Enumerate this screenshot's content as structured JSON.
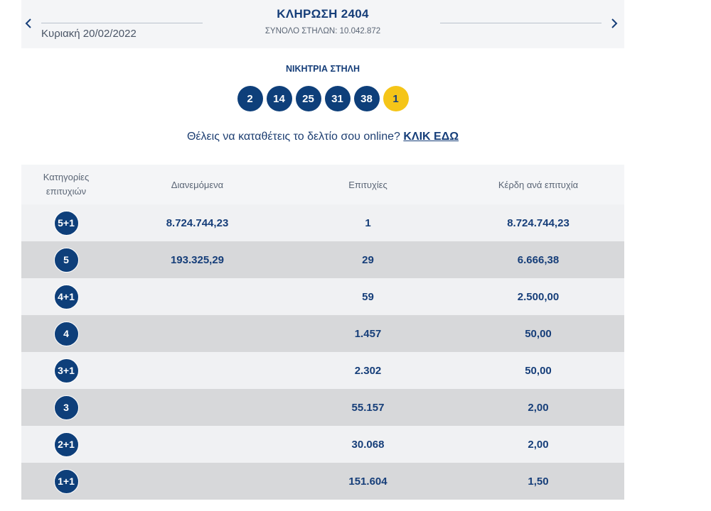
{
  "draw": {
    "title": "ΚΛΗΡΩΣΗ 2404",
    "date": "Κυριακή 20/02/2022",
    "total_columns": "ΣΥΝΟΛΟ ΣΤΗΛΩΝ: 10.042.872",
    "prev_icon": "chevron-left-icon",
    "next_icon": "chevron-right-icon"
  },
  "winning": {
    "label": "ΝΙΚΗΤΡΙΑ ΣΤΗΛΗ",
    "numbers": [
      "2",
      "14",
      "25",
      "31",
      "38"
    ],
    "bonus": "1"
  },
  "cta": {
    "text": "Θέλεις να καταθέτεις το δελτίο σου online? ",
    "link": "ΚΛΙΚ ΕΔΩ"
  },
  "table": {
    "headers": {
      "category_line1": "Κατηγορίες",
      "category_line2": "επιτυχιών",
      "distributed": "Διανεμόμενα",
      "winners": "Επιτυχίες",
      "prize": "Κέρδη ανά επιτυχία"
    },
    "rows": [
      {
        "category": "5+1",
        "distributed": "8.724.744,23",
        "winners": "1",
        "prize": "8.724.744,23"
      },
      {
        "category": "5",
        "distributed": "193.325,29",
        "winners": "29",
        "prize": "6.666,38"
      },
      {
        "category": "4+1",
        "distributed": "",
        "winners": "59",
        "prize": "2.500,00"
      },
      {
        "category": "4",
        "distributed": "",
        "winners": "1.457",
        "prize": "50,00"
      },
      {
        "category": "3+1",
        "distributed": "",
        "winners": "2.302",
        "prize": "50,00"
      },
      {
        "category": "3",
        "distributed": "",
        "winners": "55.157",
        "prize": "2,00"
      },
      {
        "category": "2+1",
        "distributed": "",
        "winners": "30.068",
        "prize": "2,00"
      },
      {
        "category": "1+1",
        "distributed": "",
        "winners": "151.604",
        "prize": "1,50"
      }
    ]
  },
  "colors": {
    "brand_blue": "#0e3f7a",
    "bonus_yellow": "#f5c518",
    "row_light": "#f0f1f3",
    "row_dark": "#d7d8da"
  }
}
